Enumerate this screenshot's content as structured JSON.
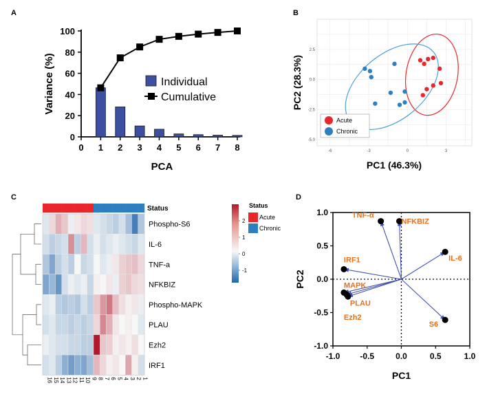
{
  "panels": {
    "A": "A",
    "B": "B",
    "C": "C",
    "D": "D"
  },
  "chart_data": [
    {
      "panel": "A",
      "type": "bar",
      "xlabel": "PCA",
      "ylabel": "Variance (%)",
      "xlim": [
        0,
        8
      ],
      "ylim": [
        0,
        100
      ],
      "xticks": [
        "0",
        "1",
        "2",
        "3",
        "4",
        "5",
        "6",
        "7",
        "8"
      ],
      "yticks": [
        "0",
        "20",
        "40",
        "60",
        "80",
        "100"
      ],
      "categories": [
        1,
        2,
        3,
        4,
        5,
        6,
        7,
        8
      ],
      "series": [
        {
          "name": "Individual",
          "kind": "bar",
          "color": "#3c4fa0",
          "values": [
            46.3,
            28.3,
            10.3,
            7.2,
            2.8,
            2.1,
            1.6,
            1.4
          ]
        },
        {
          "name": "Cumulative",
          "kind": "line",
          "color": "#000000",
          "values": [
            46.3,
            74.6,
            84.9,
            92.1,
            94.9,
            97.0,
            98.6,
            100
          ]
        }
      ],
      "legend_position": "center-right"
    },
    {
      "panel": "B",
      "type": "scatter",
      "xlabel": "PC1 (46.3%)",
      "ylabel": "PC2 (28.3%)",
      "xlim": [
        -7,
        5
      ],
      "ylim": [
        -5.5,
        5
      ],
      "xticks": [
        "-6",
        "-3",
        "0",
        "3"
      ],
      "yticks": [
        "-5.0",
        "-2.5",
        "0.0",
        "2.5"
      ],
      "grid": true,
      "legend_position": "bottom-left",
      "series": [
        {
          "name": "Acute",
          "color": "#e8262b",
          "points": [
            [
              1.0,
              1.6
            ],
            [
              1.6,
              1.7
            ],
            [
              2.0,
              1.8
            ],
            [
              1.3,
              1.3
            ],
            [
              2.5,
              0.9
            ],
            [
              1.5,
              -0.8
            ],
            [
              2.0,
              -0.5
            ],
            [
              2.6,
              -0.3
            ],
            [
              1.2,
              -1.3
            ]
          ]
        },
        {
          "name": "Chronic",
          "color": "#2d7fc0",
          "points": [
            [
              -3.3,
              0.9
            ],
            [
              -2.9,
              0.7
            ],
            [
              -2.8,
              0.2
            ],
            [
              -1.0,
              1.3
            ],
            [
              -1.3,
              -1.1
            ],
            [
              -0.2,
              -1.0
            ],
            [
              -2.5,
              -2.0
            ],
            [
              -0.6,
              -2.1
            ],
            [
              -0.2,
              -1.9
            ]
          ]
        }
      ],
      "ellipses": [
        {
          "group": "Acute",
          "color": "#e8262b",
          "cx": 1.9,
          "cy": 0.4,
          "rx": 2.0,
          "ry": 3.4,
          "angle_deg": 10
        },
        {
          "group": "Chronic",
          "color": "#4a9fd6",
          "cx": -1.2,
          "cy": -0.6,
          "rx": 4.2,
          "ry": 2.7,
          "angle_deg": -40
        }
      ]
    },
    {
      "panel": "C",
      "type": "heatmap",
      "title": "Status",
      "rows": [
        "Phospho-S6",
        "IL-6",
        "TNF-a",
        "NFKBIZ",
        "Phospho-MAPK",
        "PLAU",
        "Ezh2",
        "IRF1"
      ],
      "columns": [
        "16",
        "15",
        "14",
        "13",
        "12",
        "11",
        "10",
        "9",
        "8",
        "7",
        "6",
        "5",
        "4",
        "3",
        "2",
        "1"
      ],
      "status": [
        "Acute",
        "Acute",
        "Acute",
        "Acute",
        "Acute",
        "Acute",
        "Acute",
        "Acute",
        "Chronic",
        "Chronic",
        "Chronic",
        "Chronic",
        "Chronic",
        "Chronic",
        "Chronic",
        "Chronic"
      ],
      "status_colors": {
        "Acute": "#e8262b",
        "Chronic": "#2d7fc0"
      },
      "scale_ticks": [
        "2",
        "1",
        "0",
        "-1"
      ],
      "scale_range": [
        -1.8,
        2.8
      ],
      "values": [
        [
          -0.2,
          0.4,
          0.9,
          0.6,
          -0.1,
          0.2,
          0.4,
          0.3,
          -0.2,
          -0.3,
          -0.4,
          -0.5,
          -0.3,
          -0.7,
          -1.5,
          -0.6
        ],
        [
          -0.3,
          -0.5,
          -0.4,
          -0.3,
          1.3,
          -0.5,
          0.8,
          -0.3,
          -0.1,
          -0.3,
          -0.2,
          -0.1,
          -0.2,
          -0.3,
          -0.4,
          -0.2
        ],
        [
          -0.6,
          -1.0,
          -0.5,
          -0.3,
          -0.5,
          0.0,
          -0.4,
          -0.3,
          0.0,
          -0.2,
          -0.1,
          0.2,
          0.5,
          0.6,
          0.7,
          0.4
        ],
        [
          -1.0,
          -0.8,
          -1.2,
          -0.3,
          -0.1,
          -0.2,
          -0.1,
          -0.4,
          0.1,
          0.0,
          0.2,
          -0.1,
          0.5,
          0.6,
          0.4,
          0.3
        ],
        [
          -0.2,
          -0.1,
          -0.5,
          -0.6,
          -0.5,
          -0.6,
          -0.3,
          -0.5,
          0.6,
          1.2,
          1.6,
          0.7,
          0.3,
          0.1,
          0.2,
          -0.1
        ],
        [
          -0.3,
          -0.2,
          -0.4,
          -0.4,
          -0.5,
          -0.4,
          -0.5,
          -0.4,
          0.4,
          1.4,
          0.9,
          0.2,
          0.0,
          0.1,
          0.0,
          -0.2
        ],
        [
          -0.1,
          -0.2,
          -0.3,
          -0.3,
          -0.4,
          -0.4,
          -0.5,
          -0.5,
          2.9,
          0.6,
          0.5,
          0.1,
          0.2,
          0.1,
          0.3,
          0.0
        ],
        [
          -0.3,
          -0.2,
          -0.5,
          -0.9,
          -1.1,
          -0.9,
          -1.0,
          -0.7,
          0.8,
          0.4,
          0.1,
          0.2,
          0.0,
          1.0,
          0.1,
          -0.3
        ]
      ],
      "legend_labels": [
        "Acute",
        "Chronic"
      ]
    },
    {
      "panel": "D",
      "type": "scatter",
      "xlabel": "PC1",
      "ylabel": "PC2",
      "xlim": [
        -1.0,
        1.0
      ],
      "ylim": [
        -1.0,
        1.0
      ],
      "xticks": [
        "-1.0",
        "-0.5",
        "0.0",
        "0.5",
        "1.0"
      ],
      "yticks": [
        "-1.0",
        "-0.5",
        "0.0",
        "0.5",
        "1.0"
      ],
      "arrow_color": "#4050b0",
      "label_color": "#e8701a",
      "loadings": [
        {
          "label": "TNF-α",
          "x": -0.3,
          "y": 0.87
        },
        {
          "label": "NFKBIZ",
          "x": -0.03,
          "y": 0.87
        },
        {
          "label": "IL-6",
          "x": 0.64,
          "y": 0.41
        },
        {
          "label": "IRF1",
          "x": -0.84,
          "y": 0.15
        },
        {
          "label": "MAPK",
          "x": -0.84,
          "y": -0.2
        },
        {
          "label": "PLAU",
          "x": -0.8,
          "y": -0.23
        },
        {
          "label": "Ezh2",
          "x": -0.78,
          "y": -0.26
        },
        {
          "label": "S6",
          "x": 0.64,
          "y": -0.61
        }
      ]
    }
  ]
}
